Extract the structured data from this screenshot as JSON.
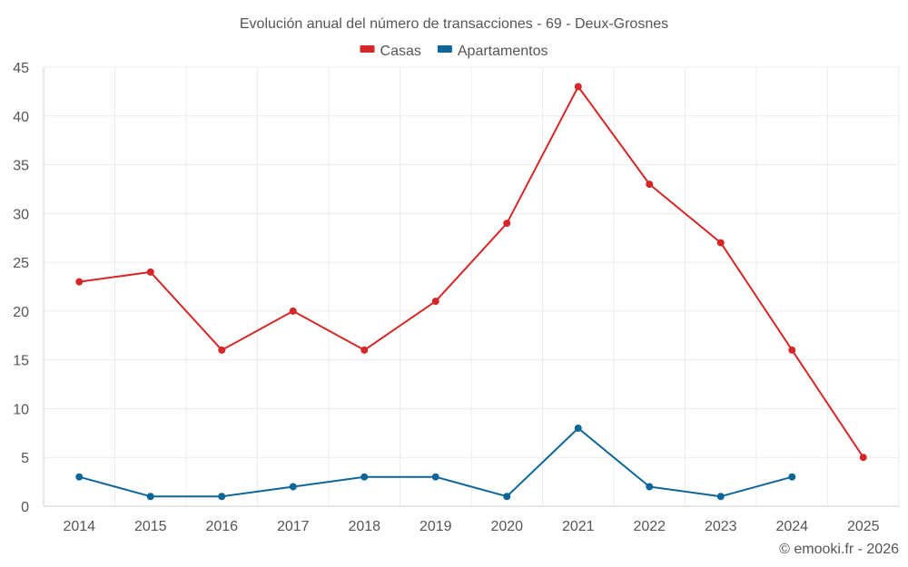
{
  "chart_data": {
    "type": "line",
    "title": "Evolución anual del número de transacciones - 69 - Deux-Grosnes",
    "categories": [
      "2014",
      "2015",
      "2016",
      "2017",
      "2018",
      "2019",
      "2020",
      "2021",
      "2022",
      "2023",
      "2024",
      "2025"
    ],
    "series": [
      {
        "name": "Casas",
        "color": "#d62728",
        "values": [
          23,
          24,
          16,
          20,
          16,
          21,
          29,
          43,
          33,
          27,
          16,
          5
        ]
      },
      {
        "name": "Apartamentos",
        "color": "#0d6699",
        "values": [
          3,
          1,
          1,
          2,
          3,
          3,
          1,
          8,
          2,
          1,
          3,
          null
        ]
      }
    ],
    "ylim": [
      0,
      45
    ],
    "yticks": [
      0,
      5,
      10,
      15,
      20,
      25,
      30,
      35,
      40,
      45
    ],
    "grid": true,
    "legend": "top-center"
  },
  "credit": "© emooki.fr - 2026"
}
